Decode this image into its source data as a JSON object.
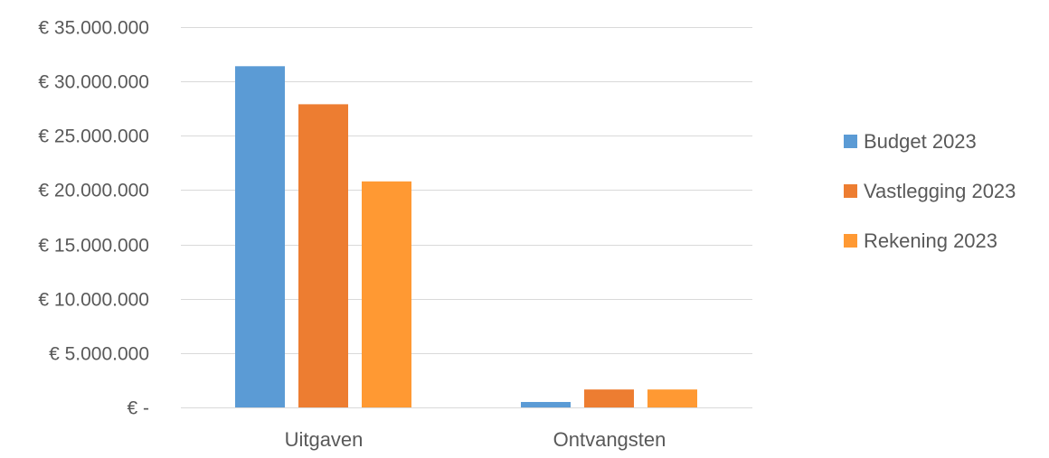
{
  "chart_data": {
    "type": "bar",
    "categories": [
      "Uitgaven",
      "Ontvangsten"
    ],
    "series": [
      {
        "name": "Budget 2023",
        "values": [
          31400000,
          500000
        ],
        "color": "#5B9BD5"
      },
      {
        "name": "Vastlegging 2023",
        "values": [
          27900000,
          1650000
        ],
        "color": "#ED7D31"
      },
      {
        "name": "Rekening 2023",
        "values": [
          20800000,
          1650000
        ],
        "color": "#FF9933"
      }
    ],
    "ylim": [
      0,
      35000000
    ],
    "yticks": [
      {
        "value": 35000000,
        "label": "€ 35.000.000"
      },
      {
        "value": 30000000,
        "label": "€ 30.000.000"
      },
      {
        "value": 25000000,
        "label": "€ 25.000.000"
      },
      {
        "value": 20000000,
        "label": "€ 20.000.000"
      },
      {
        "value": 15000000,
        "label": "€ 15.000.000"
      },
      {
        "value": 10000000,
        "label": "€ 10.000.000"
      },
      {
        "value": 5000000,
        "label": "€ 5.000.000"
      },
      {
        "value": 0,
        "label": "€ -"
      }
    ],
    "grid": true,
    "legend_position": "right",
    "gridline_color": "#d9d9d9",
    "text_color": "#595959"
  }
}
